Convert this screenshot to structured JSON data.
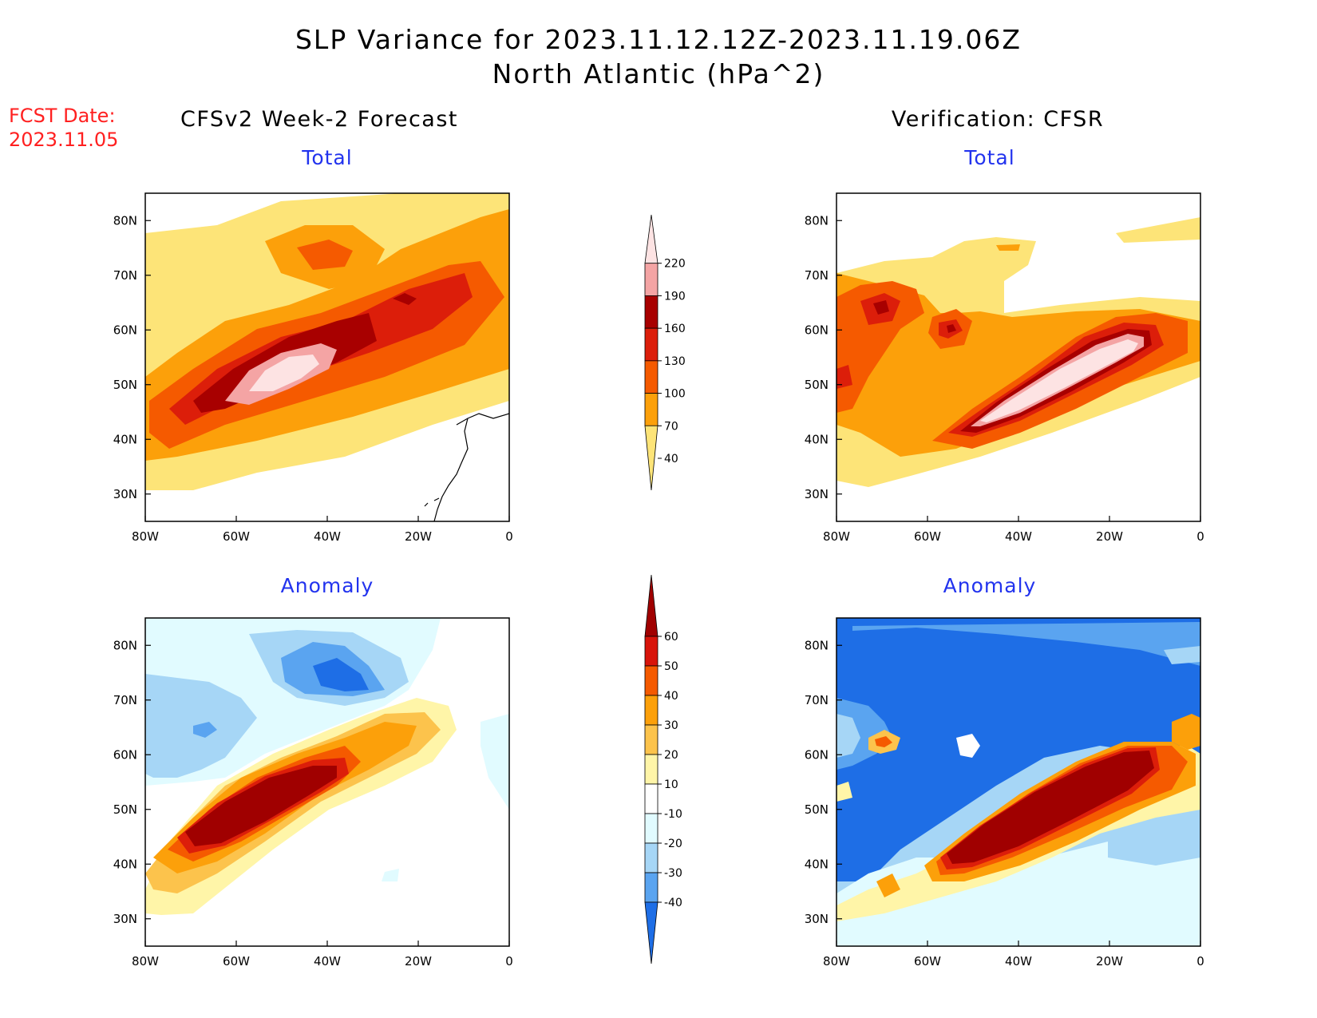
{
  "title": {
    "line1": "SLP Variance for 2023.11.12.12Z-2023.11.19.06Z",
    "line2": "North Atlantic (hPa^2)"
  },
  "fcst": {
    "label": "FCST Date:",
    "date": "2023.11.05"
  },
  "columns": {
    "left": "CFSv2 Week-2 Forecast",
    "right": "Verification: CFSR"
  },
  "panels": {
    "forecast_total": "Total",
    "verif_total": "Total",
    "forecast_anomaly": "Anomaly",
    "verif_anomaly": "Anomaly"
  },
  "axes": {
    "lat_labels": [
      "80N",
      "70N",
      "60N",
      "50N",
      "40N",
      "30N"
    ],
    "lon_labels": [
      "80W",
      "60W",
      "40W",
      "20W",
      "0"
    ],
    "lat_values": [
      80,
      70,
      60,
      50,
      40,
      30
    ],
    "lon_values": [
      -80,
      -60,
      -40,
      -20,
      0
    ],
    "lat_range": [
      25,
      85
    ],
    "lon_range": [
      -80,
      0
    ]
  },
  "colorbars": {
    "total": {
      "labels": [
        "220",
        "190",
        "160",
        "130",
        "100",
        "70",
        "40"
      ],
      "colors": [
        "#fde3e3",
        "#f4a4a4",
        "#a80000",
        "#dc1e0a",
        "#f55a00",
        "#fca00a",
        "#fde478"
      ]
    },
    "anomaly": {
      "labels": [
        "60",
        "50",
        "40",
        "30",
        "20",
        "10",
        "-10",
        "-20",
        "-30",
        "-40"
      ],
      "colors": [
        "#a00000",
        "#d8140a",
        "#f55a00",
        "#fca00a",
        "#fcc34c",
        "#fff5a8",
        "#ffffff",
        "#e1fbff",
        "#a6d6f6",
        "#5aa4f0",
        "#1e6ee6"
      ]
    }
  },
  "chart_data": [
    {
      "type": "heatmap",
      "title": "CFSv2 Week-2 Forecast - Total",
      "units": "hPa^2",
      "levels": [
        40,
        70,
        100,
        130,
        160,
        190,
        220
      ],
      "features": [
        {
          "desc": "main storm-track maximum",
          "lon": -48,
          "lat": 50,
          "max_level": 220
        },
        {
          "desc": "east Greenland secondary maximum",
          "lon": -40,
          "lat": 76,
          "max_level": 100
        },
        {
          "desc": "Iceland maximum",
          "lon": -20,
          "lat": 64,
          "max_level": 160
        }
      ]
    },
    {
      "type": "heatmap",
      "title": "Verification: CFSR - Total",
      "units": "hPa^2",
      "levels": [
        40,
        70,
        100,
        130,
        160,
        190,
        220
      ],
      "features": [
        {
          "desc": "central Atlantic maximum",
          "lon": -28,
          "lat": 53,
          "max_level": 220
        },
        {
          "desc": "Labrador maximum",
          "lon": -67,
          "lat": 62,
          "max_level": 160
        },
        {
          "desc": "Labrador Sea maximum",
          "lon": -53,
          "lat": 60,
          "max_level": 160
        }
      ]
    },
    {
      "type": "heatmap",
      "title": "CFSv2 Week-2 Forecast - Anomaly",
      "units": "hPa^2",
      "levels": [
        -40,
        -30,
        -20,
        -10,
        10,
        20,
        30,
        40,
        50,
        60
      ],
      "features": [
        {
          "desc": "positive anomaly off Newfoundland",
          "lon": -55,
          "lat": 48,
          "max_level": 60
        },
        {
          "desc": "negative anomaly over east Greenland",
          "lon": -38,
          "lat": 73,
          "min_level": -40
        }
      ]
    },
    {
      "type": "heatmap",
      "title": "Verification: CFSR - Anomaly",
      "units": "hPa^2",
      "levels": [
        -40,
        -30,
        -20,
        -10,
        10,
        20,
        30,
        40,
        50,
        60
      ],
      "features": [
        {
          "desc": "positive anomaly central Atlantic",
          "lon": -30,
          "lat": 50,
          "max_level": 60
        },
        {
          "desc": "negative anomaly Greenland / Labrador",
          "lon": -45,
          "lat": 65,
          "min_level": -40
        }
      ]
    }
  ]
}
